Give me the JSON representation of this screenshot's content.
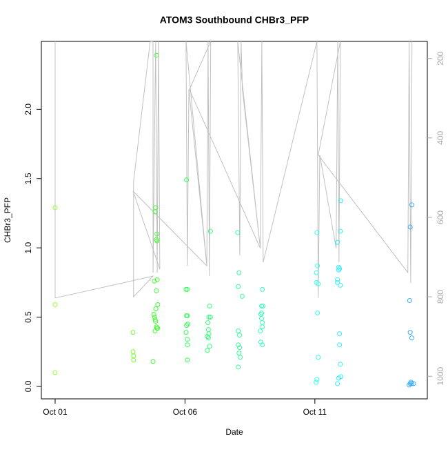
{
  "chart_data": {
    "type": "scatter",
    "title": "ATOM3 Southbound CHBr3_PFP",
    "xlabel": "Date",
    "ylabel": "CHBr3_PFP",
    "xlim": [
      -0.53,
      14.33
    ],
    "ylim": [
      -0.09,
      2.49
    ],
    "y2lim": [
      1057,
      157
    ],
    "xticks": [
      {
        "value": 0,
        "label": "Oct 01"
      },
      {
        "value": 5,
        "label": "Oct 06"
      },
      {
        "value": 10,
        "label": "Oct 11"
      }
    ],
    "yticks": [
      {
        "value": 0,
        "label": "0.0"
      },
      0.5,
      {
        "value": 1,
        "label": "1.0"
      },
      1.5,
      {
        "value": 2,
        "label": "2.0"
      }
    ],
    "y2ticks": [
      200,
      400,
      600,
      800,
      1000
    ],
    "series": [
      {
        "color": "#99ff33",
        "x": [
          0,
          0,
          0
        ],
        "values": [
          1.29,
          0.59,
          0.1
        ]
      },
      {
        "color": "#77ff33",
        "x": [
          3.0,
          3.0,
          3.02,
          3.02
        ],
        "values": [
          0.39,
          0.25,
          0.22,
          0.19
        ]
      },
      {
        "color": "#44ff33",
        "x": [
          3.9,
          3.87,
          3.85,
          3.92,
          3.9,
          3.92,
          3.93,
          3.82,
          3.9,
          3.95,
          3.88,
          3.8,
          3.83,
          3.85,
          3.87,
          3.9,
          3.95,
          3.92,
          3.85,
          3.77
        ],
        "values": [
          2.39,
          1.29,
          1.26,
          1.1,
          1.06,
          1.05,
          0.77,
          0.76,
          0.69,
          0.59,
          0.56,
          0.52,
          0.5,
          0.48,
          0.47,
          0.43,
          0.42,
          0.42,
          0.4,
          0.18
        ]
      },
      {
        "color": "#33ff55",
        "x": [
          5.06,
          5.09,
          5.04,
          5.09,
          5.06,
          5.11,
          5.06,
          5.04,
          5.09,
          5.09,
          5.09
        ],
        "values": [
          1.49,
          0.7,
          0.7,
          0.51,
          0.51,
          0.45,
          0.44,
          0.39,
          0.34,
          0.3,
          0.19
        ]
      },
      {
        "color": "#33ff77",
        "x": [
          5.98,
          5.95,
          5.92,
          5.98,
          5.88,
          5.9,
          5.92,
          5.86,
          5.9,
          5.95,
          5.86
        ],
        "values": [
          1.12,
          0.58,
          0.5,
          0.5,
          0.46,
          0.41,
          0.38,
          0.36,
          0.35,
          0.29,
          0.26
        ]
      },
      {
        "color": "#33ff99",
        "x": [
          7.03,
          7.08,
          7.05,
          7.2,
          7.05,
          7.1,
          7.05,
          7.1,
          7.08,
          7.13,
          7.05
        ],
        "values": [
          1.11,
          0.82,
          0.72,
          0.65,
          0.4,
          0.37,
          0.3,
          0.28,
          0.24,
          0.21,
          0.14
        ]
      },
      {
        "color": "#33ffbb",
        "x": [
          7.98,
          7.95,
          8.0,
          7.95,
          7.92,
          7.95,
          7.98,
          7.98,
          7.9,
          7.92,
          7.98
        ],
        "values": [
          0.7,
          0.58,
          0.58,
          0.53,
          0.52,
          0.49,
          0.46,
          0.43,
          0.4,
          0.32,
          0.3
        ]
      },
      {
        "color": "#33ffee",
        "x": [
          10.08,
          10.1,
          10.06,
          10.06,
          10.13,
          10.1,
          10.13,
          10.08,
          10.05
        ],
        "values": [
          1.11,
          0.87,
          0.82,
          0.75,
          0.74,
          0.53,
          0.21,
          0.05,
          0.03
        ]
      },
      {
        "color": "#33eeff",
        "x": [
          11.0,
          10.98,
          10.87,
          10.92,
          10.95,
          10.92,
          10.87,
          10.87,
          10.98,
          10.95,
          10.95,
          10.98,
          11.0,
          10.92,
          10.87
        ],
        "values": [
          1.34,
          1.12,
          1.04,
          0.86,
          0.85,
          0.84,
          0.77,
          0.75,
          0.73,
          0.38,
          0.3,
          0.16,
          0.07,
          0.06,
          0.02
        ]
      },
      {
        "color": "#33aaff",
        "x": [
          13.73,
          13.67,
          13.65,
          13.67,
          13.73,
          13.7,
          13.67,
          13.73,
          13.8,
          13.63
        ],
        "values": [
          1.31,
          1.15,
          0.62,
          0.39,
          0.35,
          0.03,
          0.02,
          0.02,
          0.02,
          0.01
        ]
      },
      {
        "type": "line",
        "axis": "y2",
        "color": "#c0c0c0",
        "x": [
          0,
          0,
          3.77,
          3.02,
          3.02,
          3.66,
          3.77,
          3.77,
          3.87,
          3.93,
          3.98,
          4.03,
          3.0,
          5.84,
          5.04,
          5.09,
          5.15,
          5.84,
          5.89,
          5.94,
          5.99,
          5.17,
          7.9,
          7.03,
          7.11,
          7.16,
          7.21,
          7.9,
          7.96,
          8.01,
          10.08,
          10.13,
          10.19,
          10.82,
          10.88,
          10.93,
          10.98,
          10.13,
          13.58,
          13.63,
          13.69,
          13.74
        ],
        "values": [
          157,
          803,
          748,
          800,
          510,
          157,
          157,
          739,
          157,
          739,
          157,
          730,
          534,
          722,
          157,
          722,
          278,
          722,
          157,
          748,
          157,
          278,
          678,
          157,
          696,
          157,
          278,
          678,
          157,
          713,
          157,
          803,
          443,
          678,
          157,
          713,
          157,
          443,
          739,
          157,
          765,
          157
        ]
      }
    ]
  }
}
